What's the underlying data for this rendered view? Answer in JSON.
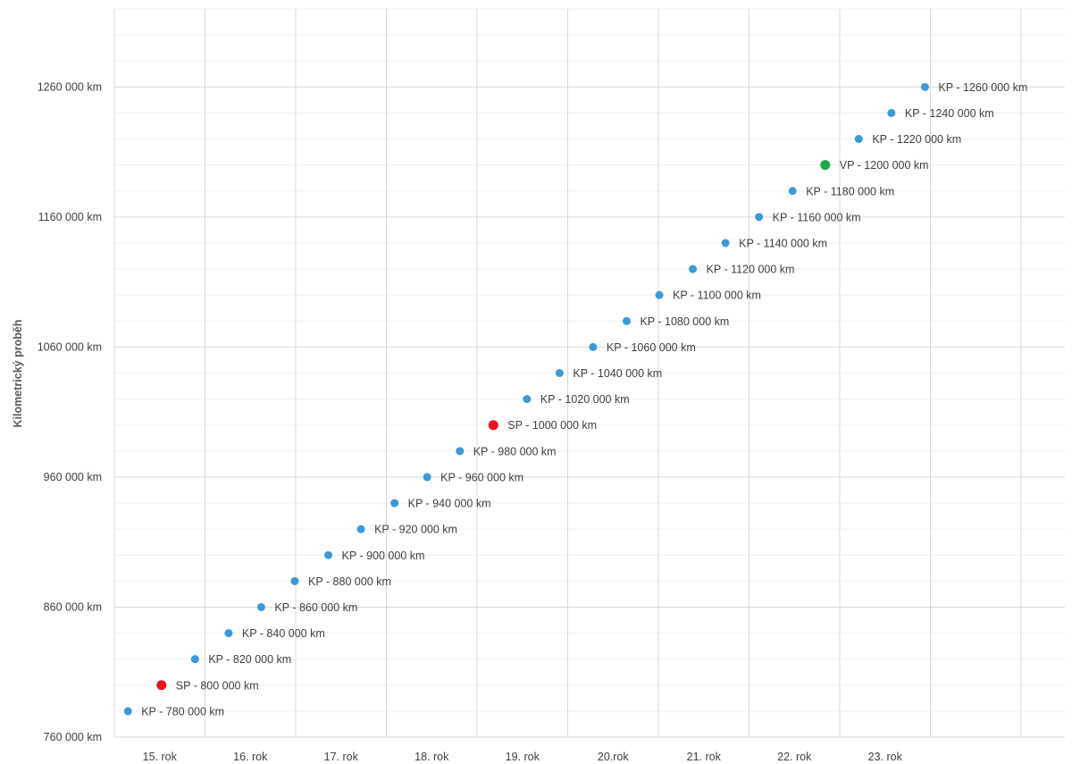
{
  "chart_data": {
    "type": "scatter",
    "title": "",
    "xlabel": "",
    "ylabel": "Kilometrický proběh",
    "ylim": [
      760000,
      1320000
    ],
    "y_ticks": [
      {
        "value": 760000,
        "label": "760 000 km"
      },
      {
        "value": 860000,
        "label": "860 000 km"
      },
      {
        "value": 960000,
        "label": "960 000 km"
      },
      {
        "value": 1060000,
        "label": "1060 000 km"
      },
      {
        "value": 1160000,
        "label": "1160 000 km"
      },
      {
        "value": 1260000,
        "label": "1260 000 km"
      }
    ],
    "x_categories": [
      "15. rok",
      "16. rok",
      "17. rok",
      "18. rok",
      "19. rok",
      "20.rok",
      "21. rok",
      "22. rok",
      "23. rok"
    ],
    "grid": true,
    "colors": {
      "KP": "#3a9ad9",
      "SP": "#e8141c",
      "VP": "#1ea84a",
      "grid_major": "#d9d9d9",
      "grid_minor": "#efefef"
    },
    "points": [
      {
        "x": 14.15,
        "y": 780000,
        "type": "KP",
        "label": "KP - 780 000 km"
      },
      {
        "x": 14.52,
        "y": 800000,
        "type": "SP",
        "label": "SP - 800 000 km"
      },
      {
        "x": 14.89,
        "y": 820000,
        "type": "KP",
        "label": "KP - 820 000 km"
      },
      {
        "x": 15.26,
        "y": 840000,
        "type": "KP",
        "label": "KP - 840 000 km"
      },
      {
        "x": 15.62,
        "y": 860000,
        "type": "KP",
        "label": "KP - 860 000 km"
      },
      {
        "x": 15.99,
        "y": 880000,
        "type": "KP",
        "label": "KP - 880 000 km"
      },
      {
        "x": 16.36,
        "y": 900000,
        "type": "KP",
        "label": "KP - 900 000 km"
      },
      {
        "x": 16.72,
        "y": 920000,
        "type": "KP",
        "label": "KP - 920 000 km"
      },
      {
        "x": 17.09,
        "y": 940000,
        "type": "KP",
        "label": "KP - 940 000 km"
      },
      {
        "x": 17.45,
        "y": 960000,
        "type": "KP",
        "label": "KP - 960 000 km"
      },
      {
        "x": 17.81,
        "y": 980000,
        "type": "KP",
        "label": "KP - 980 000 km"
      },
      {
        "x": 18.18,
        "y": 1000000,
        "type": "SP",
        "label": "SP - 1000 000 km"
      },
      {
        "x": 18.55,
        "y": 1020000,
        "type": "KP",
        "label": "KP - 1020 000 km"
      },
      {
        "x": 18.91,
        "y": 1040000,
        "type": "KP",
        "label": "KP - 1040 000 km"
      },
      {
        "x": 19.28,
        "y": 1060000,
        "type": "KP",
        "label": "KP - 1060 000 km"
      },
      {
        "x": 19.65,
        "y": 1080000,
        "type": "KP",
        "label": "KP - 1080 000 km"
      },
      {
        "x": 20.01,
        "y": 1100000,
        "type": "KP",
        "label": "KP - 1100 000 km"
      },
      {
        "x": 20.38,
        "y": 1120000,
        "type": "KP",
        "label": "KP - 1120 000 km"
      },
      {
        "x": 20.74,
        "y": 1140000,
        "type": "KP",
        "label": "KP - 1140 000 km"
      },
      {
        "x": 21.11,
        "y": 1160000,
        "type": "KP",
        "label": "KP - 1160 000 km"
      },
      {
        "x": 21.48,
        "y": 1180000,
        "type": "KP",
        "label": "KP - 1180 000 km"
      },
      {
        "x": 21.84,
        "y": 1200000,
        "type": "VP",
        "label": "VP - 1200 000 km"
      },
      {
        "x": 22.21,
        "y": 1220000,
        "type": "KP",
        "label": "KP - 1220 000 km"
      },
      {
        "x": 22.57,
        "y": 1240000,
        "type": "KP",
        "label": "KP - 1240 000 km"
      },
      {
        "x": 22.94,
        "y": 1260000,
        "type": "KP",
        "label": "KP - 1260 000 km"
      }
    ]
  }
}
